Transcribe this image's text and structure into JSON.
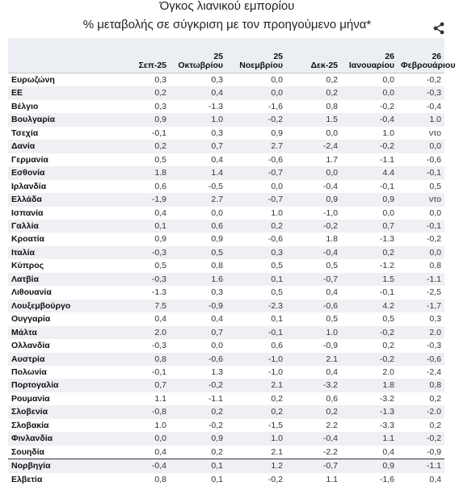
{
  "title": "Όγκος λιανικού εμπορίου",
  "subtitle": "% μεταβολής σε σύγκριση με τον προηγούμενο μήνα*",
  "share_icon": "share-icon",
  "columns": [
    "Σεπ-25",
    "25 Οκτωβρίου",
    "25 Νοεμβρίου",
    "Δεκ-25",
    "26 Ιανουαρίου",
    "26 Φεβρουάριου"
  ],
  "rows": [
    {
      "name": "Ευρωζώνη",
      "values": [
        "0,3",
        "0,3",
        "0,0",
        "0,2",
        "0,0",
        "-0,2"
      ]
    },
    {
      "name": "ΕΕ",
      "values": [
        "0,2",
        "0,4",
        "0,0",
        "0,2",
        "0,0",
        "-0,3"
      ]
    },
    {
      "name": "Βέλγιο",
      "values": [
        "0,3",
        "-1.3",
        "-1,6",
        "0,8",
        "-0,2",
        "-0,4"
      ]
    },
    {
      "name": "Βουλγαρία",
      "values": [
        "0,9",
        "1.0",
        "-0,2",
        "1.5",
        "-0,4",
        "1.0"
      ]
    },
    {
      "name": "Τσεχία",
      "values": [
        "-0,1",
        "0,3",
        "0,9",
        "0,0",
        "1.0",
        "ντο"
      ]
    },
    {
      "name": "Δανία",
      "values": [
        "0,2",
        "0,7",
        "2.7",
        "-2,4",
        "-0,2",
        "0,0"
      ]
    },
    {
      "name": "Γερμανία",
      "values": [
        "0,5",
        "0,4",
        "-0,6",
        "1.7",
        "-1.1",
        "-0,6"
      ]
    },
    {
      "name": "Εσθονία",
      "values": [
        "1.8",
        "1.4",
        "-0,7",
        "0,0",
        "4.4",
        "-0,1"
      ]
    },
    {
      "name": "Ιρλανδία",
      "values": [
        "0,6",
        "-0,5",
        "0,0",
        "-0,4",
        "-0,1",
        "0,5"
      ]
    },
    {
      "name": "Ελλάδα",
      "values": [
        "-1,9",
        "2.7",
        "-0,7",
        "0,9",
        "0,9",
        "ντο"
      ]
    },
    {
      "name": "Ισπανία",
      "values": [
        "0,4",
        "0,0",
        "1.0",
        "-1,0",
        "0,0",
        "0,0"
      ]
    },
    {
      "name": "Γαλλία",
      "values": [
        "0,1",
        "0,6",
        "0,2",
        "-0,2",
        "0,7",
        "-0,1"
      ]
    },
    {
      "name": "Κροατία",
      "values": [
        "0,9",
        "0,9",
        "-0,6",
        "1.8",
        "-1.3",
        "-0,2"
      ]
    },
    {
      "name": "Ιταλία",
      "values": [
        "-0,3",
        "0,5",
        "0,3",
        "-0,4",
        "0,2",
        "0,0"
      ]
    },
    {
      "name": "Κύπρος",
      "values": [
        "0,5",
        "0,8",
        "0,5",
        "0,5",
        "-1.2",
        "0,8"
      ]
    },
    {
      "name": "Λατβία",
      "values": [
        "-0,3",
        "1.6",
        "0,1",
        "-0,7",
        "1.5",
        "-1.1"
      ]
    },
    {
      "name": "Λιθουανία",
      "values": [
        "-1.3",
        "0,3",
        "0,5",
        "0,4",
        "-0,1",
        "-2,5"
      ]
    },
    {
      "name": "Λουξεμβούργο",
      "values": [
        "7.5",
        "-0,9",
        "-2.3",
        "-0,6",
        "4.2",
        "-1,7"
      ]
    },
    {
      "name": "Ουγγαρία",
      "values": [
        "0,4",
        "0,4",
        "0,1",
        "0,5",
        "0,5",
        "0,3"
      ]
    },
    {
      "name": "Μάλτα",
      "values": [
        "2.0",
        "0,7",
        "-0,1",
        "1.0",
        "-0,2",
        "2.0"
      ]
    },
    {
      "name": "Ολλανδία",
      "values": [
        "-0,3",
        "0,0",
        "0,6",
        "-0,9",
        "0,2",
        "-0,3"
      ]
    },
    {
      "name": "Αυστρία",
      "values": [
        "0,8",
        "-0,6",
        "-1,0",
        "2.1",
        "-0,2",
        "-0,6"
      ]
    },
    {
      "name": "Πολωνία",
      "values": [
        "-0,1",
        "1.3",
        "-1,0",
        "0,4",
        "2.0",
        "-2,4"
      ]
    },
    {
      "name": "Πορτογαλία",
      "values": [
        "0,7",
        "-0,2",
        "2.1",
        "-3.2",
        "1.8",
        "0,8"
      ]
    },
    {
      "name": "Ρουμανία",
      "values": [
        "1.1",
        "-1.1",
        "0,2",
        "0,6",
        "-3.2",
        "0,2"
      ]
    },
    {
      "name": "Σλοβενία",
      "values": [
        "-0,8",
        "0,2",
        "0,2",
        "0,2",
        "-1.3",
        "-2.0"
      ]
    },
    {
      "name": "Σλοβακία",
      "values": [
        "1.0",
        "-0,2",
        "-1,5",
        "2.2",
        "-3.3",
        "0,2"
      ]
    },
    {
      "name": "Φινλανδία",
      "values": [
        "0,0",
        "0,9",
        "1.0",
        "-0,4",
        "1.1",
        "-0,2"
      ]
    },
    {
      "name": "Σουηδία",
      "values": [
        "0,4",
        "0,2",
        "2.1",
        "-2.2",
        "0,4",
        "-0,9"
      ]
    },
    {
      "name": "Νορβηγία",
      "values": [
        "-0,4",
        "0,1",
        "1.2",
        "-0,7",
        "0,9",
        "-1.1"
      ]
    },
    {
      "name": "Ελβετία",
      "values": [
        "0,8",
        "0,1",
        "-0,2",
        "1.1",
        "-1,6",
        "0,4"
      ]
    }
  ]
}
